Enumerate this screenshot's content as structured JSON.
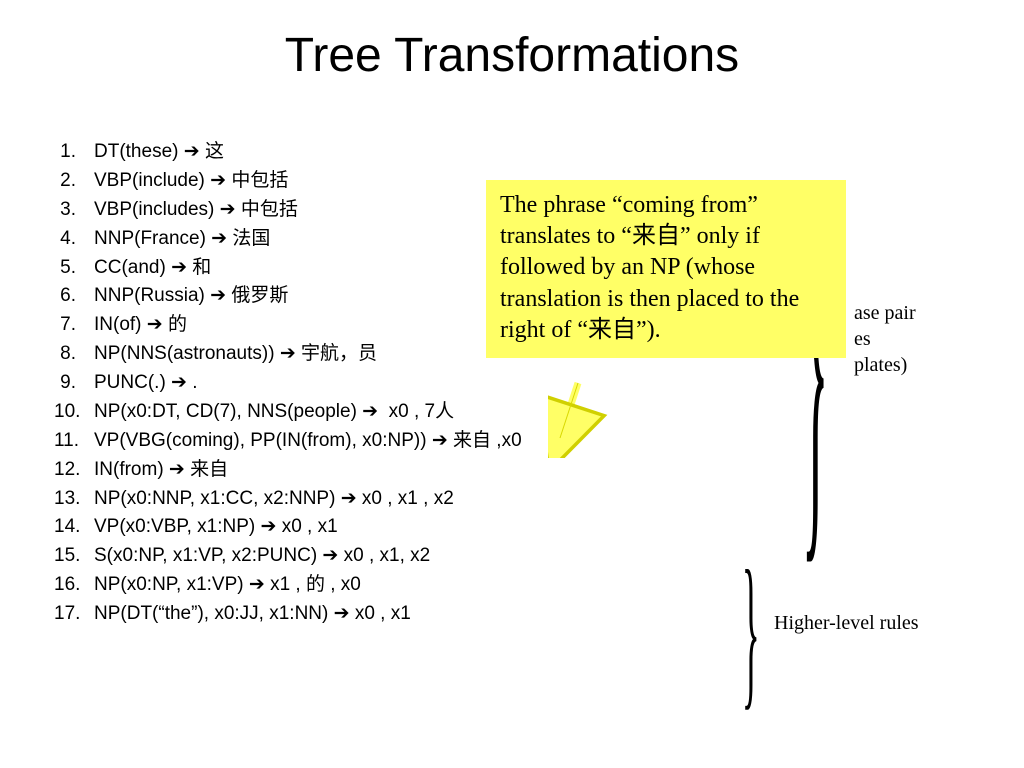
{
  "title": "Tree Transformations",
  "arrow_glyph": "➔",
  "rules": [
    "DT(these) ➔ 这",
    "VBP(include) ➔ 中包括",
    "VBP(includes) ➔ 中包括",
    "NNP(France) ➔ 法国",
    "CC(and) ➔ 和",
    "NNP(Russia) ➔ 俄罗斯",
    "IN(of) ➔ 的",
    "NP(NNS(astronauts)) ➔ 宇航，员",
    "PUNC(.) ➔ .",
    "NP(x0:DT, CD(7), NNS(people) ➔  x0 , 7人",
    "VP(VBG(coming), PP(IN(from), x0:NP)) ➔ 来自 ,x0",
    "IN(from) ➔ 来自",
    "NP(x0:NNP, x1:CC, x2:NNP) ➔ x0 , x1 , x2",
    "VP(x0:VBP, x1:NP) ➔ x0 , x1",
    "S(x0:NP, x1:VP, x2:PUNC) ➔ x0 , x1, x2",
    "NP(x0:NP, x1:VP) ➔ x1 , 的 , x0",
    "NP(DT(“the”), x0:JJ, x1:NN) ➔ x0 , x1"
  ],
  "callout_text": "The phrase “coming from” translates to “来自” only if followed by an NP (whose translation is then placed to the right of “来自”).",
  "side_label_1_lines": [
    "ase pair",
    "es",
    "plates)"
  ],
  "side_label_2": "Higher-level rules",
  "colors": {
    "background": "#ffffff",
    "text": "#000000",
    "highlight": "#ffff66",
    "arrow_fill": "#ffff66"
  }
}
